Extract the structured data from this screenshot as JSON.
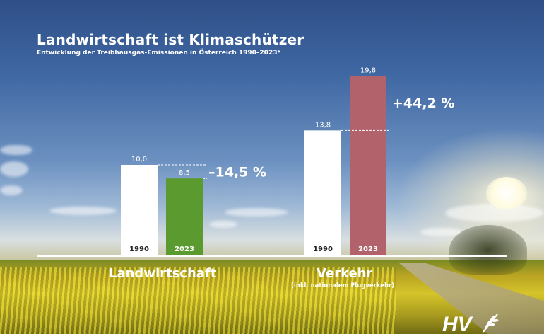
{
  "title": "Landwirtschaft ist Klimaschützer",
  "subtitle": "Entwicklung der Treibhausgas-Emissionen in Österreich 1990–2023*",
  "chart_data": {
    "type": "bar",
    "categories": [
      "Landwirtschaft",
      "Verkehr"
    ],
    "category_notes": [
      "",
      "(inkl. nationalem Flugverkehr)"
    ],
    "series": [
      {
        "name": "1990",
        "values": [
          10.0,
          13.8
        ],
        "value_labels": [
          "10,0",
          "13,8"
        ],
        "colors": [
          "#ffffff",
          "#ffffff"
        ]
      },
      {
        "name": "2023",
        "values": [
          8.5,
          19.8
        ],
        "value_labels": [
          "8,5",
          "19,8"
        ],
        "colors": [
          "#5a9a2e",
          "#b1626b"
        ]
      }
    ],
    "changes": [
      "–14,5 %",
      "+44,2 %"
    ],
    "bar_year_labels": [
      "1990",
      "2023"
    ],
    "year_label_color": "#222222",
    "ylim": [
      0,
      20
    ],
    "xlabel": "",
    "ylabel": "",
    "grid": false,
    "legend": "none"
  },
  "logo": {
    "text": "HV",
    "icon": "wheat-icon"
  }
}
